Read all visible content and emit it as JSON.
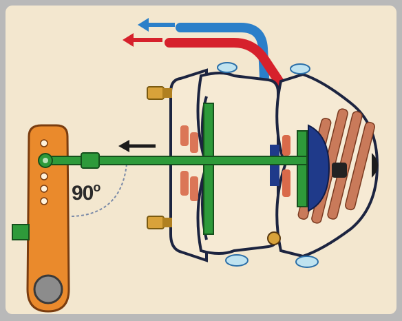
{
  "diagram": {
    "angle": {
      "value": "90",
      "unit": "o"
    },
    "colors": {
      "background": "#f3e7cf",
      "lever": "#ea8a2c",
      "push_rod": "#2e9a3a",
      "diaphragm": "#1f3a8a",
      "spring": "#c97a5a",
      "air_in": "#d6212c",
      "air_out": "#2b7fc9",
      "housing_outline": "#1c2440",
      "clamp": "#7fc3e0",
      "stud": "#d8a23a"
    },
    "icons": [
      "arrow-left-icon"
    ]
  }
}
